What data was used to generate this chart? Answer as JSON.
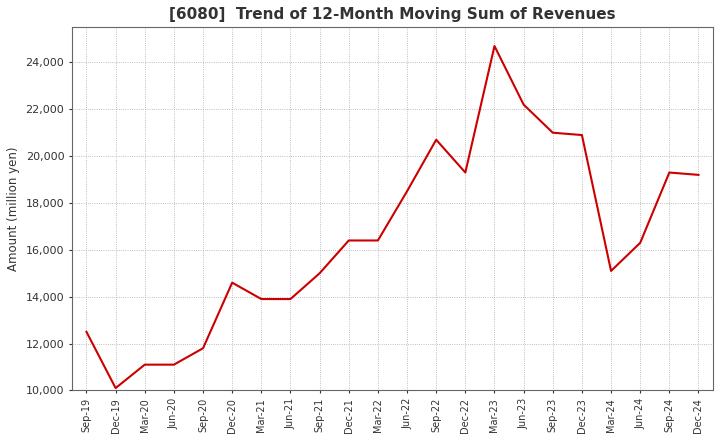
{
  "title": "[6080]  Trend of 12-Month Moving Sum of Revenues",
  "ylabel": "Amount (million yen)",
  "background_color": "#ffffff",
  "plot_bg_color": "#ffffff",
  "grid_color": "#aaaaaa",
  "line_color": "#cc0000",
  "title_color": "#333333",
  "ylim": [
    10000,
    25500
  ],
  "yticks": [
    10000,
    12000,
    14000,
    16000,
    18000,
    20000,
    22000,
    24000
  ],
  "labels": [
    "Sep-19",
    "Dec-19",
    "Mar-20",
    "Jun-20",
    "Sep-20",
    "Dec-20",
    "Mar-21",
    "Jun-21",
    "Sep-21",
    "Dec-21",
    "Mar-22",
    "Jun-22",
    "Sep-22",
    "Dec-22",
    "Mar-23",
    "Jun-23",
    "Sep-23",
    "Dec-23",
    "Mar-24",
    "Jun-24",
    "Sep-24",
    "Dec-24"
  ],
  "values": [
    12500,
    10100,
    11100,
    11100,
    11800,
    14600,
    13900,
    13900,
    15000,
    16400,
    16400,
    18500,
    20700,
    19300,
    24700,
    22200,
    21000,
    20900,
    15100,
    16300,
    19300,
    19200
  ]
}
